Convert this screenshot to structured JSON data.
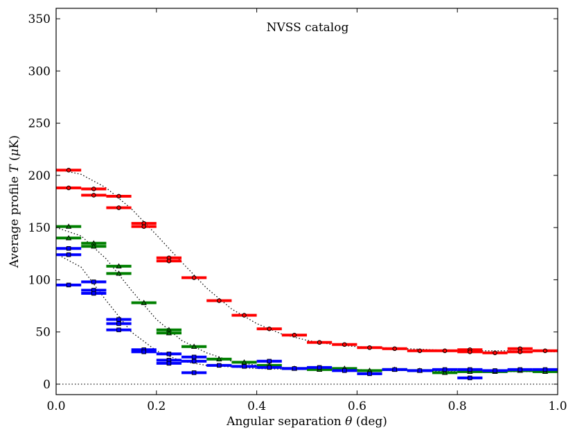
{
  "chart_data": {
    "type": "scatter",
    "title": "",
    "annotation": "NVSS catalog",
    "xlabel": "Angular separation θ (deg)",
    "ylabel": "Average profile T (μK)",
    "xlim": [
      0.0,
      1.0
    ],
    "ylim": [
      -10,
      360
    ],
    "xticks": [
      0.0,
      0.2,
      0.4,
      0.6,
      0.8,
      1.0
    ],
    "xtick_labels": [
      "0.0",
      "0.2",
      "0.4",
      "0.6",
      "0.8",
      "1.0"
    ],
    "yticks": [
      0,
      50,
      100,
      150,
      200,
      250,
      300,
      350
    ],
    "ytick_labels": [
      "0",
      "50",
      "100",
      "150",
      "200",
      "250",
      "300",
      "350"
    ],
    "bin_halfwidth": 0.025,
    "zero_line": true,
    "series": [
      {
        "name": "red",
        "color": "#ff0000",
        "marker": "circle",
        "x": [
          0.025,
          0.025,
          0.075,
          0.075,
          0.125,
          0.125,
          0.175,
          0.175,
          0.225,
          0.225,
          0.275,
          0.325,
          0.375,
          0.425,
          0.475,
          0.525,
          0.575,
          0.625,
          0.675,
          0.725,
          0.775,
          0.825,
          0.825,
          0.875,
          0.925,
          0.925,
          0.975
        ],
        "y": [
          205,
          188,
          187,
          181,
          180,
          169,
          154,
          151,
          121,
          118,
          102,
          80,
          66,
          53,
          47,
          40,
          38,
          35,
          34,
          32,
          32,
          33,
          31,
          30,
          34,
          31,
          32
        ]
      },
      {
        "name": "green",
        "color": "#008000",
        "marker": "triangle",
        "x": [
          0.025,
          0.025,
          0.075,
          0.075,
          0.125,
          0.125,
          0.175,
          0.225,
          0.225,
          0.275,
          0.325,
          0.375,
          0.425,
          0.475,
          0.525,
          0.575,
          0.625,
          0.675,
          0.725,
          0.775,
          0.825,
          0.875,
          0.925,
          0.975
        ],
        "y": [
          151,
          140,
          135,
          132,
          113,
          106,
          78,
          52,
          49,
          36,
          24,
          21,
          18,
          15,
          14,
          15,
          13,
          14,
          13,
          11,
          12,
          12,
          13,
          12
        ],
        "dotted_model": [
          [
            0.0,
            150
          ],
          [
            0.05,
            142
          ],
          [
            0.1,
            120
          ],
          [
            0.15,
            90
          ],
          [
            0.2,
            62
          ],
          [
            0.25,
            42
          ],
          [
            0.3,
            30
          ],
          [
            0.35,
            22
          ],
          [
            0.4,
            18
          ],
          [
            0.45,
            16
          ],
          [
            0.5,
            15
          ],
          [
            0.6,
            14
          ],
          [
            0.7,
            13
          ],
          [
            0.8,
            12
          ],
          [
            0.9,
            12
          ],
          [
            1.0,
            12
          ]
        ]
      },
      {
        "name": "blue",
        "color": "#0000ff",
        "marker": "square",
        "x": [
          0.025,
          0.025,
          0.025,
          0.075,
          0.075,
          0.075,
          0.125,
          0.125,
          0.125,
          0.175,
          0.175,
          0.225,
          0.225,
          0.225,
          0.275,
          0.275,
          0.275,
          0.325,
          0.375,
          0.425,
          0.425,
          0.475,
          0.525,
          0.575,
          0.625,
          0.675,
          0.725,
          0.775,
          0.825,
          0.825,
          0.875,
          0.925,
          0.975
        ],
        "y": [
          130,
          124,
          95,
          98,
          90,
          87,
          62,
          58,
          52,
          33,
          31,
          29,
          23,
          20,
          26,
          22,
          11,
          18,
          17,
          22,
          16,
          15,
          16,
          13,
          10,
          14,
          13,
          14,
          14,
          6,
          13,
          14,
          14
        ]
      }
    ],
    "red_model": [
      [
        0.0,
        206
      ],
      [
        0.05,
        201
      ],
      [
        0.1,
        188
      ],
      [
        0.15,
        168
      ],
      [
        0.2,
        143
      ],
      [
        0.25,
        117
      ],
      [
        0.3,
        92
      ],
      [
        0.35,
        72
      ],
      [
        0.4,
        58
      ],
      [
        0.45,
        48
      ],
      [
        0.5,
        42
      ],
      [
        0.55,
        38
      ],
      [
        0.6,
        36
      ],
      [
        0.7,
        34
      ],
      [
        0.8,
        32
      ],
      [
        0.9,
        32
      ],
      [
        1.0,
        31
      ]
    ],
    "blue_model": [
      [
        0.0,
        125
      ],
      [
        0.05,
        112
      ],
      [
        0.1,
        80
      ],
      [
        0.15,
        50
      ],
      [
        0.2,
        32
      ],
      [
        0.25,
        22
      ],
      [
        0.3,
        18
      ],
      [
        0.4,
        15
      ],
      [
        0.5,
        14
      ],
      [
        0.6,
        13
      ],
      [
        0.7,
        13
      ],
      [
        0.8,
        13
      ],
      [
        0.9,
        12
      ],
      [
        1.0,
        12
      ]
    ]
  }
}
